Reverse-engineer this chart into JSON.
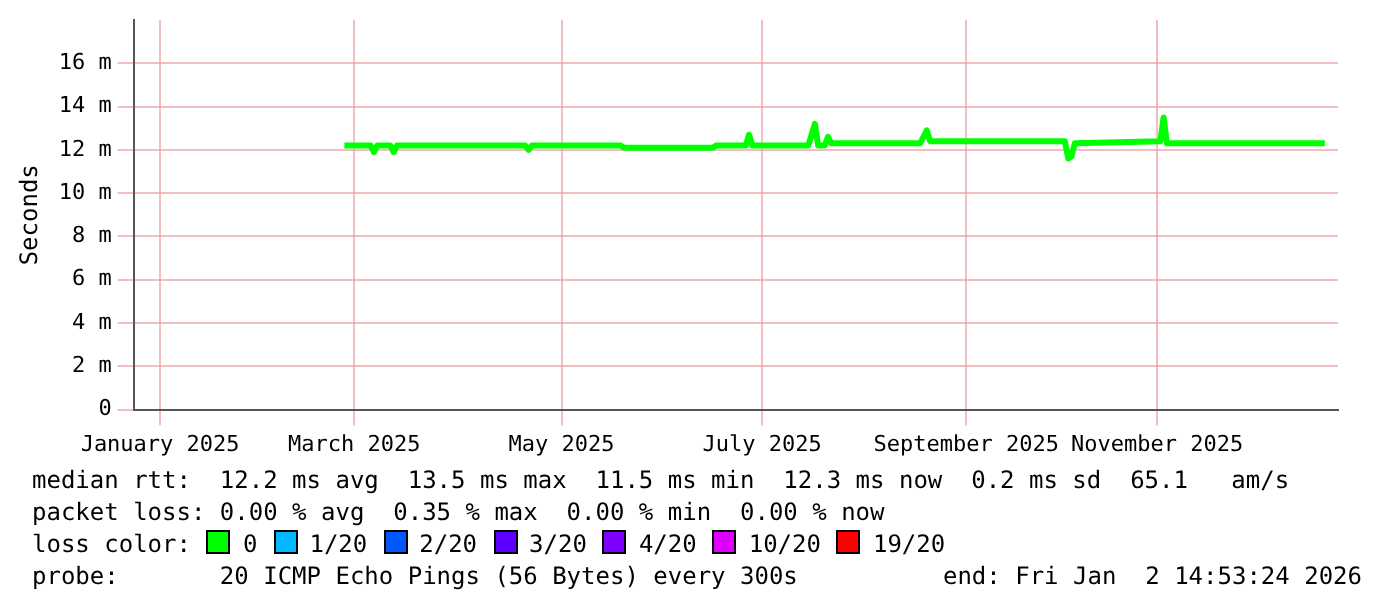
{
  "chart_data": {
    "type": "line",
    "ylabel": "Seconds",
    "x": [
      "2025-03-06",
      "2025-03-14",
      "2025-03-15",
      "2025-03-16",
      "2025-03-20",
      "2025-03-21",
      "2025-03-22",
      "2025-04-30",
      "2025-05-01",
      "2025-05-02",
      "2025-05-29",
      "2025-05-30",
      "2025-06-26",
      "2025-06-27",
      "2025-07-06",
      "2025-07-07",
      "2025-07-08",
      "2025-07-25",
      "2025-07-27",
      "2025-07-28",
      "2025-07-30",
      "2025-07-31",
      "2025-08-01",
      "2025-08-28",
      "2025-08-30",
      "2025-08-31",
      "2025-10-11",
      "2025-10-12",
      "2025-10-13",
      "2025-10-14",
      "2025-11-09",
      "2025-11-10",
      "2025-11-11",
      "2025-12-29"
    ],
    "series": [
      {
        "name": "0",
        "color": "#00ff00",
        "values": [
          12.2,
          12.2,
          11.9,
          12.2,
          12.2,
          11.9,
          12.2,
          12.2,
          12.0,
          12.2,
          12.2,
          12.1,
          12.1,
          12.2,
          12.2,
          12.7,
          12.2,
          12.2,
          13.2,
          12.2,
          12.2,
          12.6,
          12.3,
          12.3,
          12.9,
          12.4,
          12.4,
          11.6,
          11.7,
          12.3,
          12.4,
          13.5,
          12.3,
          12.3
        ]
      }
    ],
    "legend": "bottom",
    "legend_title": "loss color:",
    "xlim": [
      "2025-01-01",
      "2026-01-02"
    ],
    "xticks": [
      {
        "value": "2025-01-09",
        "label": "January 2025"
      },
      {
        "value": "2025-03-09",
        "label": "March 2025"
      },
      {
        "value": "2025-05-11",
        "label": "May 2025"
      },
      {
        "value": "2025-07-11",
        "label": "July 2025"
      },
      {
        "value": "2025-09-11",
        "label": "September 2025"
      },
      {
        "value": "2025-11-08",
        "label": "November 2025"
      }
    ],
    "ylim": [
      0,
      18
    ],
    "yticks": [
      0,
      {
        "value": 2,
        "label": "2 m"
      },
      {
        "value": 4,
        "label": "4 m"
      },
      {
        "value": 6,
        "label": "6 m"
      },
      {
        "value": 8,
        "label": "8 m"
      },
      {
        "value": 10,
        "label": "10 m"
      },
      {
        "value": 12,
        "label": "12 m"
      },
      {
        "value": 14,
        "label": "14 m"
      },
      {
        "value": 16,
        "label": "16 m"
      }
    ],
    "grid": true,
    "marker": "none",
    "line_style": "solid",
    "annotations": [
      "median rtt:  12.2 ms avg  13.5 ms max  11.5 ms min  12.3 ms now  0.2 ms sd  65.1   am/s",
      "packet loss: 0.00 % avg  0.35 % max  0.00 % min  0.00 % now",
      "1/20",
      "2/20",
      "3/20",
      "4/20",
      "10/20",
      "19/20",
      "probe:       20 ICMP Echo Pings (56 Bytes) every 300s",
      "end: Fri Jan  2 14:53:24 2026"
    ]
  }
}
